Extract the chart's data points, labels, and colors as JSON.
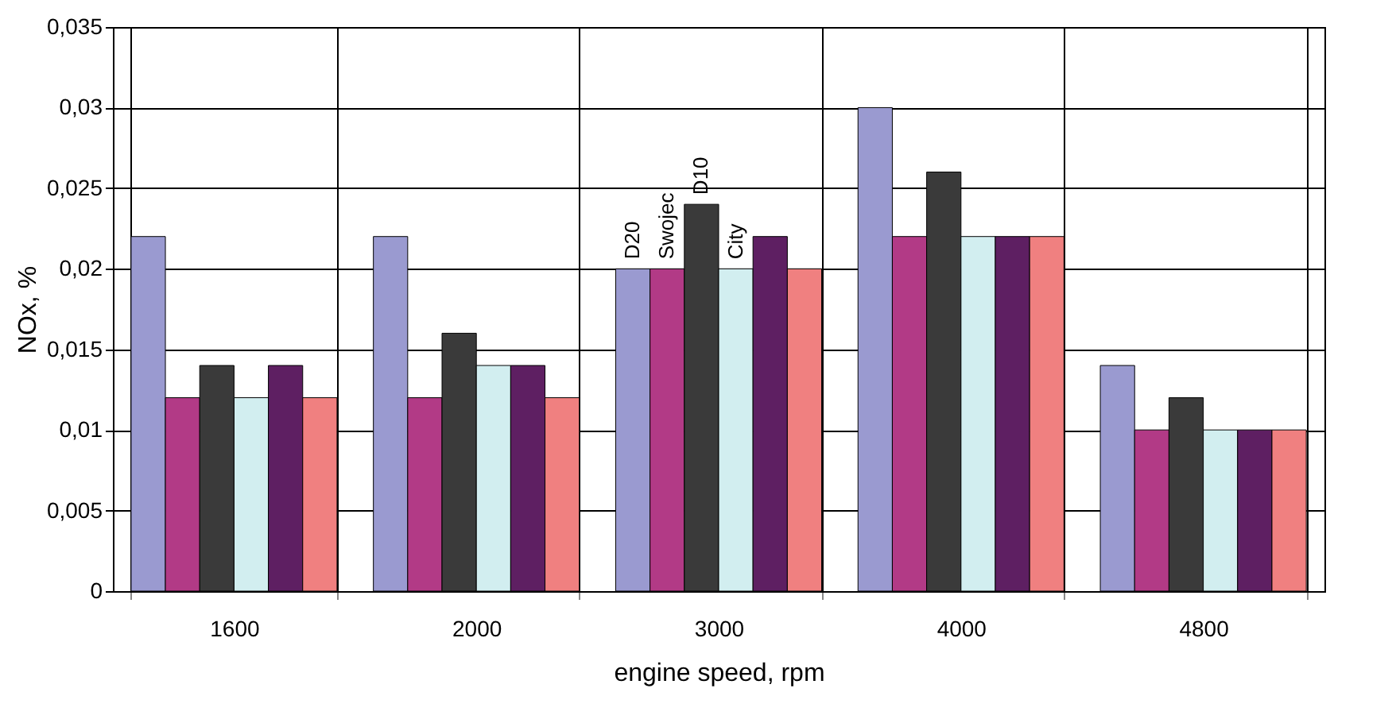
{
  "chart_data": {
    "type": "bar",
    "xlabel": "engine speed,  rpm",
    "ylabel": "NOx,  %",
    "categories": [
      "1600",
      "2000",
      "3000",
      "4000",
      "4800"
    ],
    "series": [
      {
        "name": "D20",
        "color": "#9a9ad0",
        "values": [
          0.022,
          0.022,
          0.02,
          0.03,
          0.014
        ]
      },
      {
        "name": "Swojec",
        "color": "#b23a86",
        "values": [
          0.012,
          0.012,
          0.02,
          0.022,
          0.01
        ]
      },
      {
        "name": "D10",
        "color": "#3a3a3a",
        "values": [
          0.014,
          0.016,
          0.024,
          0.026,
          0.012
        ]
      },
      {
        "name": "City",
        "color": "#d2eef0",
        "values": [
          0.012,
          0.014,
          0.02,
          0.022,
          0.01
        ]
      },
      {
        "color": "#5e1f62",
        "values": [
          0.014,
          0.014,
          0.022,
          0.022,
          0.01
        ]
      },
      {
        "color": "#f08080",
        "values": [
          0.012,
          0.012,
          0.02,
          0.022,
          0.01
        ]
      }
    ],
    "ylim": [
      0,
      0.035
    ],
    "yticks": [
      0,
      {
        "value": 0.005,
        "label": "0,005"
      },
      {
        "value": 0.01,
        "label": "0,01"
      },
      {
        "value": 0.015,
        "label": "0,015"
      },
      {
        "value": 0.02,
        "label": "0,02"
      },
      {
        "value": 0.025,
        "label": "0,025"
      },
      {
        "value": 0.03,
        "label": "0,03"
      },
      {
        "value": 0.035,
        "label": "0,035"
      }
    ],
    "grid": true
  }
}
